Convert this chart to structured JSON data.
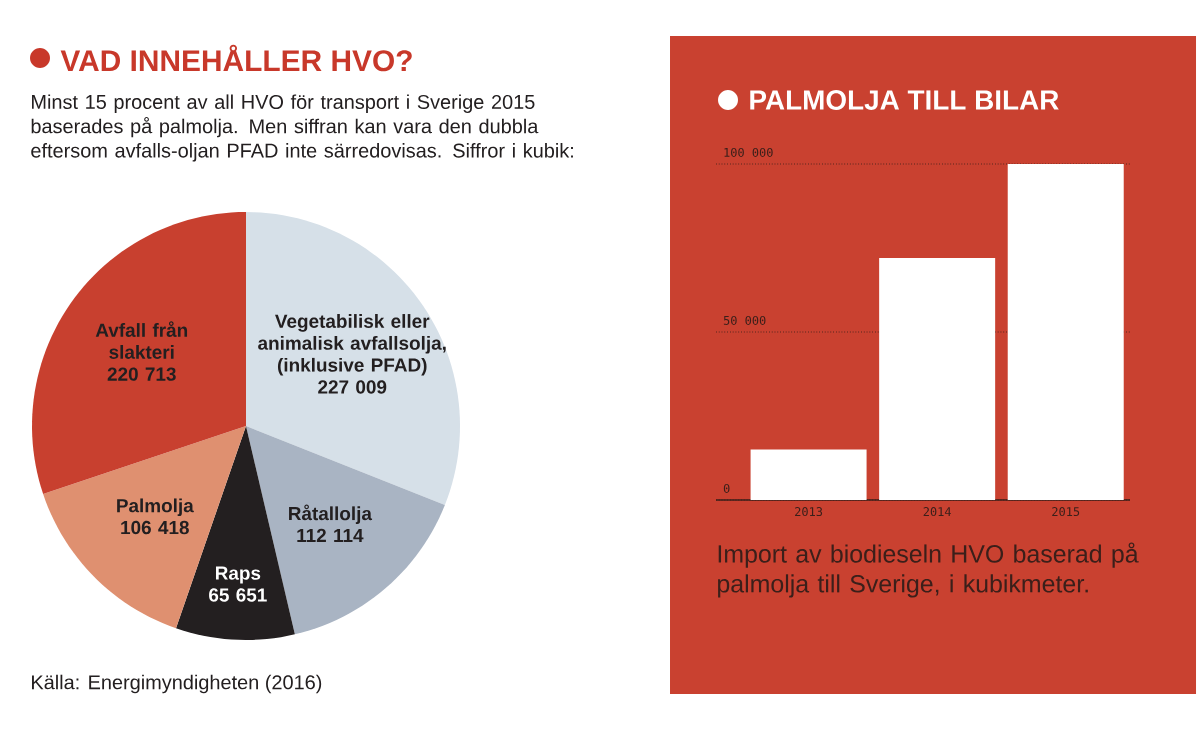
{
  "chart_data": [
    {
      "type": "pie",
      "title": "VAD INNEHÅLLER HVO?",
      "subtitle": "Minst 15 procent av all HVO för transport i Sverige 2015 baserades på palmolja. Men siffran kan vara den dubbla eftersom avfalls-oljan PFAD inte särredovisas. Siffror i kubik:",
      "categories": [
        "Vegetabilisk eller animalisk avfallsolja, (inklusive PFAD)",
        "Råtallolja",
        "Raps",
        "Palmolja",
        "Avfall från slakteri"
      ],
      "values": [
        227009,
        112114,
        65651,
        106418,
        220713
      ],
      "value_labels": [
        "227 009",
        "112 114",
        "65 651",
        "106 418",
        "220 713"
      ],
      "colors": [
        "#d6e0e8",
        "#a9b4c3",
        "#231f20",
        "#df9070",
        "#c8402f"
      ],
      "annotations": [
        "Källa: Energimyndigheten (2016)"
      ]
    },
    {
      "type": "bar",
      "title": "PALMOLJA TILL BILAR",
      "categories": [
        "2013",
        "2014",
        "2015"
      ],
      "values": [
        15000,
        72000,
        100000
      ],
      "color": "#ffffff",
      "ylim": [
        0,
        100000
      ],
      "yticks": [
        0,
        {
          "value": 50000,
          "label": "50 000"
        },
        {
          "value": 100000,
          "label": "100 000"
        }
      ],
      "grid": "y",
      "annotations": [
        "Import av biodieseln HVO baserad på palmolja till Sverige, i kubikmeter."
      ]
    }
  ]
}
